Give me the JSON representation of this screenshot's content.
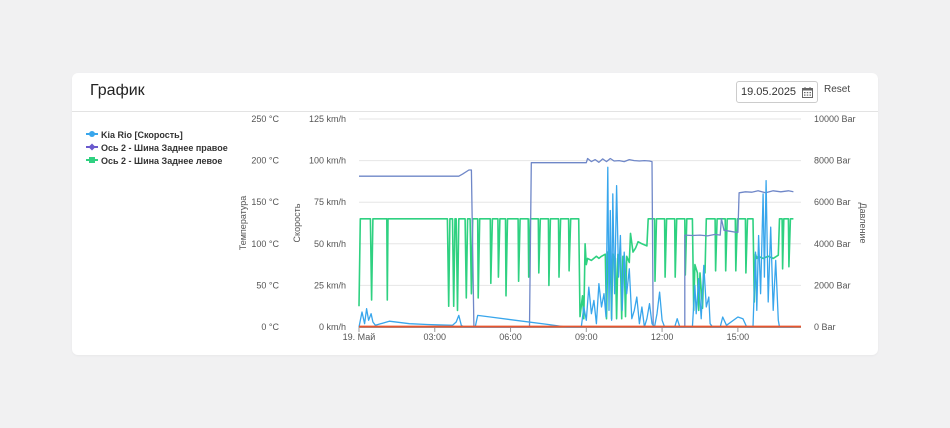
{
  "card": {
    "title": "График",
    "date_value": "19.05.2025",
    "reset_label": "Reset"
  },
  "chart_data": {
    "type": "line",
    "x_range_hours": [
      0,
      17.5
    ],
    "x_ticks": [
      {
        "h": 0,
        "label": "19. Май"
      },
      {
        "h": 3,
        "label": "03:00"
      },
      {
        "h": 6,
        "label": "06:00"
      },
      {
        "h": 9,
        "label": "09:00"
      },
      {
        "h": 12,
        "label": "12:00"
      },
      {
        "h": 15,
        "label": "15:00"
      }
    ],
    "axes": {
      "temperature": {
        "title": "Температура",
        "unit": "°C",
        "min": 0,
        "max": 250,
        "ticks": [
          0,
          50,
          100,
          150,
          200,
          250
        ]
      },
      "speed": {
        "title": "Скорость",
        "unit": "km/h",
        "min": 0,
        "max": 125,
        "ticks": [
          0,
          25,
          50,
          75,
          100,
          125
        ]
      },
      "pressure": {
        "title": "Давление",
        "unit": "Bar",
        "min": 0,
        "max": 10000,
        "ticks": [
          0,
          2000,
          4000,
          6000,
          8000,
          10000
        ]
      }
    },
    "grid": true,
    "legend_position": "top-left",
    "series": [
      {
        "name": "Kia Rio [Скорость]",
        "color": "#38a6ec",
        "axis": "speed",
        "points": [
          [
            0.0,
            0
          ],
          [
            0.12,
            9
          ],
          [
            0.22,
            2
          ],
          [
            0.3,
            11
          ],
          [
            0.38,
            4
          ],
          [
            0.48,
            8
          ],
          [
            0.55,
            3
          ],
          [
            0.65,
            1
          ],
          [
            1.2,
            3.5
          ],
          [
            2.0,
            2
          ],
          [
            2.7,
            1.5
          ],
          [
            3.7,
            1
          ],
          [
            3.85,
            3
          ],
          [
            3.95,
            7
          ],
          [
            4.05,
            1
          ],
          [
            4.15,
            0
          ],
          [
            4.55,
            0
          ],
          [
            4.6,
            0
          ],
          [
            4.7,
            7
          ],
          [
            5.2,
            6
          ],
          [
            6.2,
            4
          ],
          [
            7.5,
            1.5
          ],
          [
            8.2,
            0
          ],
          [
            8.8,
            0
          ],
          [
            8.9,
            12
          ],
          [
            9.0,
            4
          ],
          [
            9.1,
            24
          ],
          [
            9.2,
            8
          ],
          [
            9.3,
            16
          ],
          [
            9.4,
            2
          ],
          [
            9.5,
            26
          ],
          [
            9.6,
            12
          ],
          [
            9.7,
            20
          ],
          [
            9.78,
            6
          ],
          [
            9.85,
            96
          ],
          [
            9.9,
            10
          ],
          [
            9.95,
            70
          ],
          [
            10.0,
            4
          ],
          [
            10.05,
            80
          ],
          [
            10.12,
            20
          ],
          [
            10.2,
            85
          ],
          [
            10.28,
            30
          ],
          [
            10.35,
            55
          ],
          [
            10.42,
            10
          ],
          [
            10.5,
            45
          ],
          [
            10.6,
            20
          ],
          [
            10.7,
            35
          ],
          [
            10.8,
            5
          ],
          [
            10.9,
            10
          ],
          [
            11.0,
            18
          ],
          [
            11.1,
            2
          ],
          [
            11.2,
            12
          ],
          [
            11.3,
            0
          ],
          [
            11.4,
            5
          ],
          [
            11.5,
            14
          ],
          [
            11.6,
            2
          ],
          [
            11.7,
            0
          ],
          [
            11.8,
            8
          ],
          [
            11.9,
            21
          ],
          [
            12.0,
            4
          ],
          [
            12.1,
            0
          ],
          [
            12.5,
            0
          ],
          [
            12.6,
            5
          ],
          [
            12.7,
            0
          ],
          [
            13.2,
            0
          ],
          [
            13.3,
            25
          ],
          [
            13.35,
            8
          ],
          [
            13.45,
            29
          ],
          [
            13.55,
            5
          ],
          [
            13.65,
            37
          ],
          [
            13.75,
            12
          ],
          [
            13.85,
            18
          ],
          [
            13.9,
            2
          ],
          [
            14.0,
            0
          ],
          [
            14.3,
            0
          ],
          [
            14.4,
            6
          ],
          [
            14.55,
            1
          ],
          [
            15.0,
            6
          ],
          [
            15.2,
            5
          ],
          [
            15.35,
            0
          ],
          [
            15.6,
            0
          ],
          [
            15.7,
            45
          ],
          [
            15.75,
            10
          ],
          [
            15.82,
            55
          ],
          [
            15.9,
            20
          ],
          [
            16.0,
            80
          ],
          [
            16.05,
            30
          ],
          [
            16.12,
            88
          ],
          [
            16.2,
            15
          ],
          [
            16.3,
            60
          ],
          [
            16.4,
            10
          ],
          [
            16.5,
            40
          ],
          [
            16.6,
            4
          ],
          [
            16.65,
            0
          ],
          [
            17.2,
            0
          ]
        ]
      },
      {
        "name": "Ось 2 - Шина Заднее правое",
        "color": "#6f87c8",
        "axis": "pressure",
        "points": [
          [
            0,
            7250
          ],
          [
            3.95,
            7250
          ],
          [
            4.1,
            7350
          ],
          [
            4.35,
            7550
          ],
          [
            4.45,
            7550
          ],
          [
            4.55,
            0
          ],
          [
            6.75,
            0
          ],
          [
            6.82,
            7900
          ],
          [
            9.0,
            7900
          ],
          [
            9.05,
            8100
          ],
          [
            9.2,
            7950
          ],
          [
            9.35,
            8050
          ],
          [
            9.5,
            7920
          ],
          [
            9.65,
            8080
          ],
          [
            9.8,
            7950
          ],
          [
            9.95,
            8100
          ],
          [
            10.1,
            7980
          ],
          [
            10.3,
            8000
          ],
          [
            10.5,
            7950
          ],
          [
            10.7,
            8050
          ],
          [
            10.9,
            8000
          ],
          [
            11.1,
            7980
          ],
          [
            11.3,
            8000
          ],
          [
            11.5,
            7980
          ],
          [
            11.6,
            7950
          ],
          [
            11.65,
            0
          ],
          [
            12.9,
            0
          ],
          [
            12.9,
            4420
          ],
          [
            13.2,
            4400
          ],
          [
            13.5,
            4420
          ],
          [
            13.8,
            4380
          ],
          [
            14.1,
            4450
          ],
          [
            14.3,
            4420
          ],
          [
            14.35,
            5200
          ],
          [
            14.45,
            4650
          ],
          [
            14.7,
            4600
          ],
          [
            14.95,
            4550
          ],
          [
            15.0,
            4550
          ],
          [
            15.05,
            6450
          ],
          [
            15.3,
            6500
          ],
          [
            15.55,
            6480
          ],
          [
            15.8,
            6550
          ],
          [
            16.1,
            6450
          ],
          [
            16.4,
            6550
          ],
          [
            16.7,
            6500
          ],
          [
            17.0,
            6550
          ],
          [
            17.2,
            6500
          ]
        ]
      },
      {
        "name": "Ось 2 - Шина Заднее левое",
        "color": "#2fd181",
        "axis": "pressure",
        "points": [
          [
            0,
            1000
          ],
          [
            0.05,
            5200
          ],
          [
            0.45,
            5200
          ],
          [
            0.5,
            1300
          ],
          [
            0.55,
            5200
          ],
          [
            1.1,
            5200
          ],
          [
            1.12,
            1300
          ],
          [
            1.15,
            5200
          ],
          [
            3.5,
            5200
          ],
          [
            3.55,
            1000
          ],
          [
            3.6,
            5200
          ],
          [
            3.7,
            5200
          ],
          [
            3.75,
            1000
          ],
          [
            3.8,
            5200
          ],
          [
            3.85,
            5200
          ],
          [
            3.9,
            800
          ],
          [
            3.95,
            5200
          ],
          [
            4.2,
            5200
          ],
          [
            4.25,
            1400
          ],
          [
            4.3,
            5200
          ],
          [
            4.4,
            5200
          ],
          [
            4.45,
            1600
          ],
          [
            4.5,
            5200
          ],
          [
            4.7,
            5200
          ],
          [
            4.72,
            1400
          ],
          [
            4.78,
            5200
          ],
          [
            5.2,
            5200
          ],
          [
            5.22,
            2100
          ],
          [
            5.28,
            5200
          ],
          [
            5.5,
            5200
          ],
          [
            5.52,
            2400
          ],
          [
            5.58,
            5200
          ],
          [
            5.8,
            5200
          ],
          [
            5.82,
            1500
          ],
          [
            5.88,
            5200
          ],
          [
            6.3,
            5200
          ],
          [
            6.32,
            2200
          ],
          [
            6.38,
            5200
          ],
          [
            6.7,
            5200
          ],
          [
            6.72,
            2400
          ],
          [
            6.78,
            5200
          ],
          [
            7.1,
            5200
          ],
          [
            7.12,
            2600
          ],
          [
            7.18,
            5200
          ],
          [
            7.5,
            5200
          ],
          [
            7.52,
            2000
          ],
          [
            7.58,
            5200
          ],
          [
            7.9,
            5200
          ],
          [
            7.92,
            2400
          ],
          [
            7.98,
            5200
          ],
          [
            8.3,
            5200
          ],
          [
            8.32,
            2700
          ],
          [
            8.38,
            5200
          ],
          [
            8.7,
            5200
          ],
          [
            8.75,
            500
          ],
          [
            8.85,
            1500
          ],
          [
            8.9,
            400
          ],
          [
            8.95,
            4000
          ],
          [
            9.0,
            3000
          ],
          [
            9.05,
            3300
          ],
          [
            9.2,
            3200
          ],
          [
            9.4,
            3400
          ],
          [
            9.5,
            3300
          ],
          [
            9.6,
            3400
          ],
          [
            9.75,
            3500
          ],
          [
            9.8,
            400
          ],
          [
            9.85,
            3600
          ],
          [
            9.95,
            3300
          ],
          [
            10.0,
            400
          ],
          [
            10.05,
            3500
          ],
          [
            10.15,
            3300
          ],
          [
            10.2,
            400
          ],
          [
            10.25,
            3500
          ],
          [
            10.35,
            3300
          ],
          [
            10.4,
            400
          ],
          [
            10.45,
            3400
          ],
          [
            10.5,
            3200
          ],
          [
            10.55,
            500
          ],
          [
            10.6,
            3400
          ],
          [
            10.7,
            3100
          ],
          [
            10.75,
            4500
          ],
          [
            10.85,
            3600
          ],
          [
            10.95,
            3800
          ],
          [
            11.05,
            4100
          ],
          [
            11.2,
            4000
          ],
          [
            11.4,
            3900
          ],
          [
            11.45,
            5200
          ],
          [
            11.7,
            5200
          ],
          [
            11.72,
            2200
          ],
          [
            11.78,
            5200
          ],
          [
            12.1,
            5200
          ],
          [
            12.12,
            2400
          ],
          [
            12.18,
            5200
          ],
          [
            12.5,
            5200
          ],
          [
            12.52,
            2400
          ],
          [
            12.58,
            5200
          ],
          [
            12.9,
            5200
          ],
          [
            12.92,
            2500
          ],
          [
            12.98,
            5200
          ],
          [
            13.2,
            5200
          ],
          [
            13.25,
            800
          ],
          [
            13.3,
            3000
          ],
          [
            13.4,
            2600
          ],
          [
            13.45,
            800
          ],
          [
            13.5,
            2600
          ],
          [
            13.6,
            900
          ],
          [
            13.65,
            2800
          ],
          [
            13.7,
            2600
          ],
          [
            13.75,
            5200
          ],
          [
            14.1,
            5200
          ],
          [
            14.12,
            2700
          ],
          [
            14.18,
            5200
          ],
          [
            14.5,
            5200
          ],
          [
            14.52,
            2700
          ],
          [
            14.58,
            5200
          ],
          [
            14.9,
            5200
          ],
          [
            14.92,
            2700
          ],
          [
            14.98,
            5200
          ],
          [
            15.3,
            5200
          ],
          [
            15.32,
            2600
          ],
          [
            15.38,
            5200
          ],
          [
            15.6,
            5200
          ],
          [
            15.65,
            1200
          ],
          [
            15.7,
            3500
          ],
          [
            15.75,
            3300
          ],
          [
            15.8,
            3400
          ],
          [
            16.0,
            3300
          ],
          [
            16.2,
            3400
          ],
          [
            16.4,
            3300
          ],
          [
            16.6,
            3450
          ],
          [
            16.65,
            5200
          ],
          [
            16.75,
            5200
          ],
          [
            16.77,
            2800
          ],
          [
            16.82,
            5200
          ],
          [
            17.0,
            5200
          ],
          [
            17.02,
            2900
          ],
          [
            17.08,
            5200
          ],
          [
            17.2,
            5200
          ]
        ]
      }
    ]
  }
}
